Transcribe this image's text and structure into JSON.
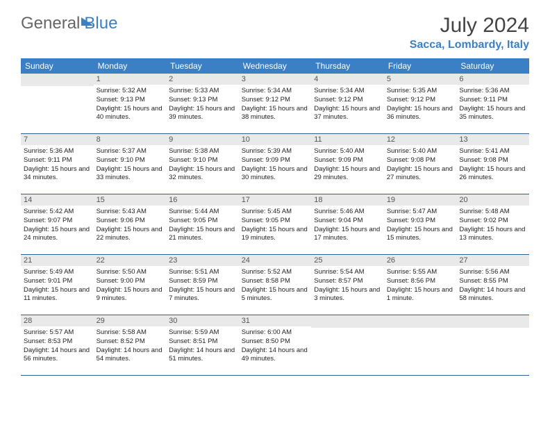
{
  "brand": {
    "part1": "General",
    "part2": "Blue"
  },
  "title": "July 2024",
  "location": "Sacca, Lombardy, Italy",
  "colors": {
    "accent": "#3b7fc4",
    "header_bg": "#3b7fc4",
    "daynum_bg": "#e9e9e9",
    "rule": "#2b5f94"
  },
  "weekdays": [
    "Sunday",
    "Monday",
    "Tuesday",
    "Wednesday",
    "Thursday",
    "Friday",
    "Saturday"
  ],
  "weeks": [
    [
      {
        "n": "",
        "sr": "",
        "ss": "",
        "dl": ""
      },
      {
        "n": "1",
        "sr": "Sunrise: 5:32 AM",
        "ss": "Sunset: 9:13 PM",
        "dl": "Daylight: 15 hours and 40 minutes."
      },
      {
        "n": "2",
        "sr": "Sunrise: 5:33 AM",
        "ss": "Sunset: 9:13 PM",
        "dl": "Daylight: 15 hours and 39 minutes."
      },
      {
        "n": "3",
        "sr": "Sunrise: 5:34 AM",
        "ss": "Sunset: 9:12 PM",
        "dl": "Daylight: 15 hours and 38 minutes."
      },
      {
        "n": "4",
        "sr": "Sunrise: 5:34 AM",
        "ss": "Sunset: 9:12 PM",
        "dl": "Daylight: 15 hours and 37 minutes."
      },
      {
        "n": "5",
        "sr": "Sunrise: 5:35 AM",
        "ss": "Sunset: 9:12 PM",
        "dl": "Daylight: 15 hours and 36 minutes."
      },
      {
        "n": "6",
        "sr": "Sunrise: 5:36 AM",
        "ss": "Sunset: 9:11 PM",
        "dl": "Daylight: 15 hours and 35 minutes."
      }
    ],
    [
      {
        "n": "7",
        "sr": "Sunrise: 5:36 AM",
        "ss": "Sunset: 9:11 PM",
        "dl": "Daylight: 15 hours and 34 minutes."
      },
      {
        "n": "8",
        "sr": "Sunrise: 5:37 AM",
        "ss": "Sunset: 9:10 PM",
        "dl": "Daylight: 15 hours and 33 minutes."
      },
      {
        "n": "9",
        "sr": "Sunrise: 5:38 AM",
        "ss": "Sunset: 9:10 PM",
        "dl": "Daylight: 15 hours and 32 minutes."
      },
      {
        "n": "10",
        "sr": "Sunrise: 5:39 AM",
        "ss": "Sunset: 9:09 PM",
        "dl": "Daylight: 15 hours and 30 minutes."
      },
      {
        "n": "11",
        "sr": "Sunrise: 5:40 AM",
        "ss": "Sunset: 9:09 PM",
        "dl": "Daylight: 15 hours and 29 minutes."
      },
      {
        "n": "12",
        "sr": "Sunrise: 5:40 AM",
        "ss": "Sunset: 9:08 PM",
        "dl": "Daylight: 15 hours and 27 minutes."
      },
      {
        "n": "13",
        "sr": "Sunrise: 5:41 AM",
        "ss": "Sunset: 9:08 PM",
        "dl": "Daylight: 15 hours and 26 minutes."
      }
    ],
    [
      {
        "n": "14",
        "sr": "Sunrise: 5:42 AM",
        "ss": "Sunset: 9:07 PM",
        "dl": "Daylight: 15 hours and 24 minutes."
      },
      {
        "n": "15",
        "sr": "Sunrise: 5:43 AM",
        "ss": "Sunset: 9:06 PM",
        "dl": "Daylight: 15 hours and 22 minutes."
      },
      {
        "n": "16",
        "sr": "Sunrise: 5:44 AM",
        "ss": "Sunset: 9:05 PM",
        "dl": "Daylight: 15 hours and 21 minutes."
      },
      {
        "n": "17",
        "sr": "Sunrise: 5:45 AM",
        "ss": "Sunset: 9:05 PM",
        "dl": "Daylight: 15 hours and 19 minutes."
      },
      {
        "n": "18",
        "sr": "Sunrise: 5:46 AM",
        "ss": "Sunset: 9:04 PM",
        "dl": "Daylight: 15 hours and 17 minutes."
      },
      {
        "n": "19",
        "sr": "Sunrise: 5:47 AM",
        "ss": "Sunset: 9:03 PM",
        "dl": "Daylight: 15 hours and 15 minutes."
      },
      {
        "n": "20",
        "sr": "Sunrise: 5:48 AM",
        "ss": "Sunset: 9:02 PM",
        "dl": "Daylight: 15 hours and 13 minutes."
      }
    ],
    [
      {
        "n": "21",
        "sr": "Sunrise: 5:49 AM",
        "ss": "Sunset: 9:01 PM",
        "dl": "Daylight: 15 hours and 11 minutes."
      },
      {
        "n": "22",
        "sr": "Sunrise: 5:50 AM",
        "ss": "Sunset: 9:00 PM",
        "dl": "Daylight: 15 hours and 9 minutes."
      },
      {
        "n": "23",
        "sr": "Sunrise: 5:51 AM",
        "ss": "Sunset: 8:59 PM",
        "dl": "Daylight: 15 hours and 7 minutes."
      },
      {
        "n": "24",
        "sr": "Sunrise: 5:52 AM",
        "ss": "Sunset: 8:58 PM",
        "dl": "Daylight: 15 hours and 5 minutes."
      },
      {
        "n": "25",
        "sr": "Sunrise: 5:54 AM",
        "ss": "Sunset: 8:57 PM",
        "dl": "Daylight: 15 hours and 3 minutes."
      },
      {
        "n": "26",
        "sr": "Sunrise: 5:55 AM",
        "ss": "Sunset: 8:56 PM",
        "dl": "Daylight: 15 hours and 1 minute."
      },
      {
        "n": "27",
        "sr": "Sunrise: 5:56 AM",
        "ss": "Sunset: 8:55 PM",
        "dl": "Daylight: 14 hours and 58 minutes."
      }
    ],
    [
      {
        "n": "28",
        "sr": "Sunrise: 5:57 AM",
        "ss": "Sunset: 8:53 PM",
        "dl": "Daylight: 14 hours and 56 minutes."
      },
      {
        "n": "29",
        "sr": "Sunrise: 5:58 AM",
        "ss": "Sunset: 8:52 PM",
        "dl": "Daylight: 14 hours and 54 minutes."
      },
      {
        "n": "30",
        "sr": "Sunrise: 5:59 AM",
        "ss": "Sunset: 8:51 PM",
        "dl": "Daylight: 14 hours and 51 minutes."
      },
      {
        "n": "31",
        "sr": "Sunrise: 6:00 AM",
        "ss": "Sunset: 8:50 PM",
        "dl": "Daylight: 14 hours and 49 minutes."
      },
      {
        "n": "",
        "sr": "",
        "ss": "",
        "dl": ""
      },
      {
        "n": "",
        "sr": "",
        "ss": "",
        "dl": ""
      },
      {
        "n": "",
        "sr": "",
        "ss": "",
        "dl": ""
      }
    ]
  ]
}
